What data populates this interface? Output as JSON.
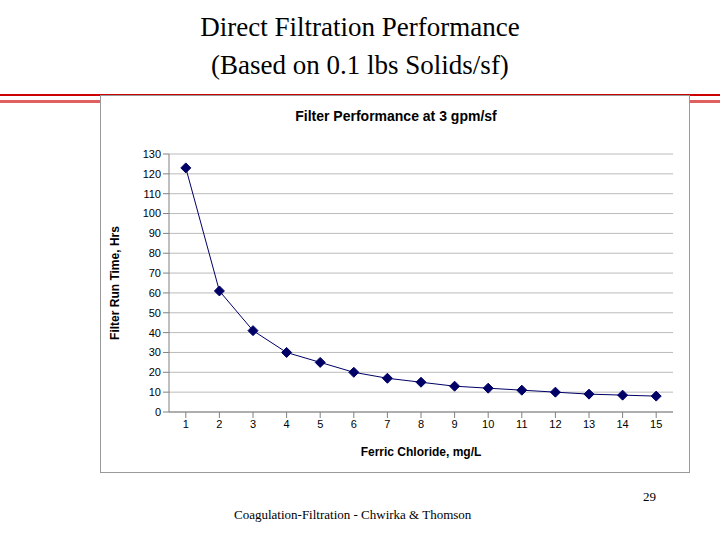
{
  "slide": {
    "title_lines": [
      "Direct Filtration Performance",
      "(Based on 0.1 lbs Solids/sf)"
    ],
    "footer": "Coagulation-Filtration - Chwirka & Thomson",
    "page_number": 29
  },
  "chart_data": {
    "type": "line",
    "title": "Filter Performance at 3 gpm/sf",
    "x_label": "Ferric Chloride, mg/L",
    "y_label": "Filter Run Time, Hrs",
    "x": [
      1,
      2,
      3,
      4,
      5,
      6,
      7,
      8,
      9,
      10,
      11,
      12,
      13,
      14,
      15
    ],
    "values": [
      123,
      61,
      41,
      30,
      25,
      20,
      17,
      15,
      13,
      12,
      11,
      10,
      9,
      8.5,
      8
    ],
    "color": "#000066",
    "marker": "diamond",
    "xlim": [
      0.5,
      15.5
    ],
    "xticks": [
      1,
      2,
      3,
      4,
      5,
      6,
      7,
      8,
      9,
      10,
      11,
      12,
      13,
      14,
      15
    ],
    "ylim": [
      0,
      130
    ],
    "yticks": [
      0,
      10,
      20,
      30,
      40,
      50,
      60,
      70,
      80,
      90,
      100,
      110,
      120,
      130
    ],
    "grid": true
  }
}
